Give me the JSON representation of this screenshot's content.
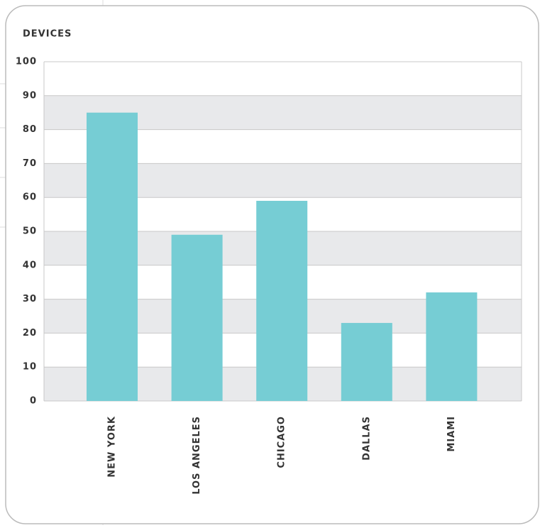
{
  "chart_data": {
    "type": "bar",
    "title": "DEVICES",
    "categories": [
      "NEW YORK",
      "LOS ANGELES",
      "CHICAGO",
      "DALLAS",
      "MIAMI"
    ],
    "values": [
      85,
      49,
      59,
      23,
      32
    ],
    "color": "#76cdd4",
    "ylim": [
      0,
      100
    ],
    "yticks": [
      0,
      10,
      20,
      30,
      40,
      50,
      60,
      70,
      80,
      90,
      100
    ],
    "grid": true
  }
}
